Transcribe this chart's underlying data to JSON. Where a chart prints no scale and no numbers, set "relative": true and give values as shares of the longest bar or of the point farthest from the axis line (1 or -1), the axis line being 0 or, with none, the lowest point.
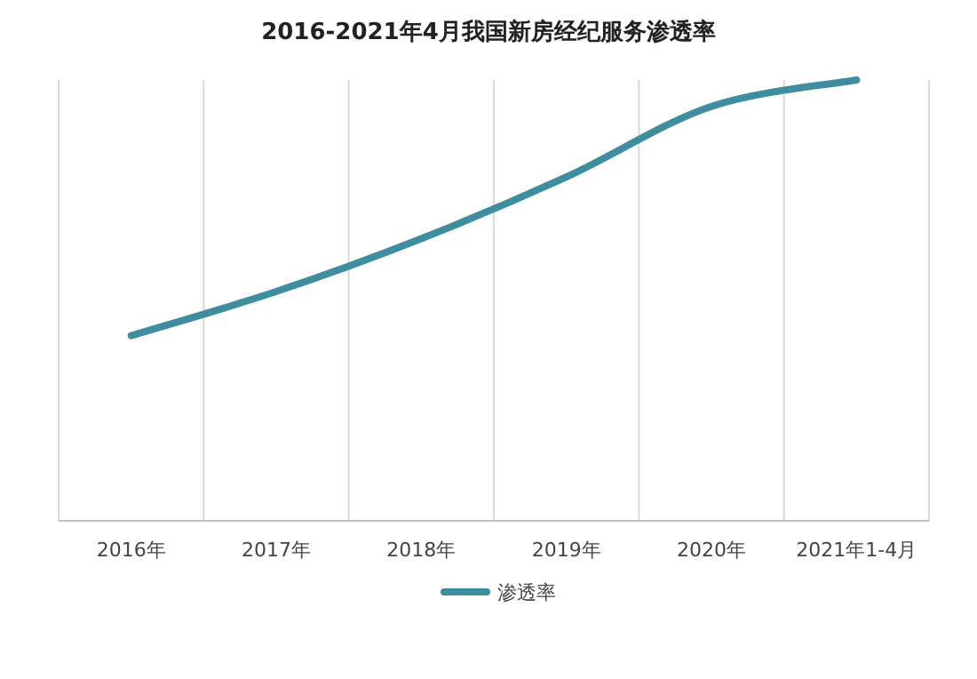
{
  "chart_data": {
    "type": "line",
    "title": "2016-2021年4月我国新房经纪服务渗透率",
    "categories": [
      "2016年",
      "2017年",
      "2018年",
      "2019年",
      "2020年",
      "2021年1-4月"
    ],
    "relative": true,
    "grid": "x",
    "legend": "bottom",
    "marker": "none",
    "line_style": "solid",
    "series": [
      {
        "name": "渗透率",
        "color": "#3f8ea0",
        "values": [
          0.42,
          0.52,
          0.64,
          0.78,
          0.94,
          1
        ]
      }
    ]
  }
}
